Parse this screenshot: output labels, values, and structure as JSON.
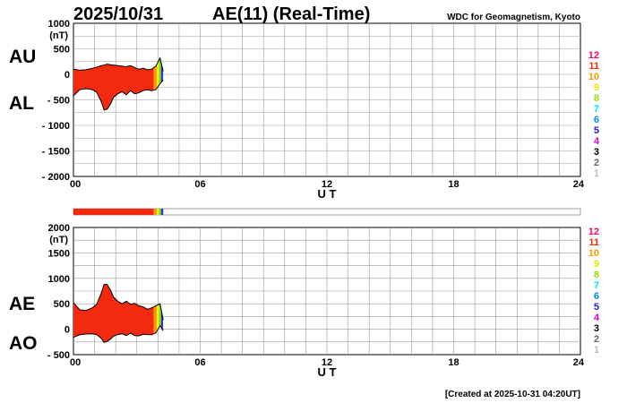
{
  "date": "2025/10/31",
  "title": "AE(11) (Real-Time)",
  "organization": "WDC for Geomagnetism, Kyoto",
  "created": "[Created at 2025-10-31 04:20UT]",
  "colors": {
    "fill_main": "#f42a10",
    "fill_orange": "#ff9900",
    "fill_yellow": "#f4f400",
    "fill_green": "#66dd33",
    "fill_blue": "#3333cc",
    "grid": "#999999",
    "curve": "#000000"
  },
  "kp_legend": [
    {
      "label": "12",
      "color": "#ff0066"
    },
    {
      "label": "11",
      "color": "#ff2a00"
    },
    {
      "label": "10",
      "color": "#ff9900"
    },
    {
      "label": "9",
      "color": "#e6e600"
    },
    {
      "label": "8",
      "color": "#99dd00"
    },
    {
      "label": "7",
      "color": "#00e6e6"
    },
    {
      "label": "6",
      "color": "#0088ff"
    },
    {
      "label": "5",
      "color": "#2222cc"
    },
    {
      "label": "4",
      "color": "#cc00cc"
    },
    {
      "label": "3",
      "color": "#000000"
    },
    {
      "label": "2",
      "color": "#666666"
    },
    {
      "label": "1",
      "color": "#bbbbbb"
    }
  ],
  "chart_data": [
    {
      "type": "area",
      "panel": "AU/AL",
      "labels_left": [
        "AU",
        "AL"
      ],
      "ylabel_unit": "(nT)",
      "ylim": [
        -2000,
        1000
      ],
      "yticks": [
        1000,
        500,
        0,
        -500,
        -1000,
        -1500,
        -2000
      ],
      "ytick_labels": [
        "1000",
        "500",
        "0",
        "- 500",
        "- 1000",
        "- 1500",
        "- 2000"
      ],
      "xlim": [
        0,
        24
      ],
      "xticks": [
        0,
        6,
        12,
        18,
        24
      ],
      "xtick_labels": [
        "00",
        "06",
        "12",
        "18",
        "24"
      ],
      "xlabel": "U T",
      "grid": true,
      "x": [
        0,
        0.3,
        0.6,
        0.9,
        1.1,
        1.3,
        1.45,
        1.6,
        1.75,
        1.9,
        2.1,
        2.3,
        2.5,
        2.7,
        2.9,
        3.1,
        3.3,
        3.5,
        3.7,
        3.9,
        4.1,
        4.25
      ],
      "series": [
        {
          "name": "AU",
          "values": [
            100,
            80,
            90,
            120,
            140,
            170,
            180,
            200,
            190,
            180,
            170,
            160,
            150,
            170,
            130,
            100,
            120,
            90,
            100,
            160,
            320,
            60
          ]
        },
        {
          "name": "AL",
          "values": [
            -420,
            -300,
            -280,
            -300,
            -350,
            -520,
            -700,
            -680,
            -580,
            -450,
            -380,
            -340,
            -400,
            -320,
            -380,
            -360,
            -320,
            -300,
            -320,
            -300,
            -180,
            -120
          ]
        }
      ]
    },
    {
      "type": "bar",
      "panel": "activity-bar",
      "xlim": [
        0,
        24
      ],
      "segments": [
        {
          "x0": 0,
          "x1": 3.8,
          "color": "#f42a10"
        },
        {
          "x0": 3.8,
          "x1": 3.95,
          "color": "#ff9900"
        },
        {
          "x0": 3.95,
          "x1": 4.05,
          "color": "#f4f400"
        },
        {
          "x0": 4.05,
          "x1": 4.15,
          "color": "#66dd33"
        },
        {
          "x0": 4.15,
          "x1": 4.25,
          "color": "#3333cc"
        }
      ]
    },
    {
      "type": "area",
      "panel": "AE/AO",
      "labels_left": [
        "AE",
        "AO"
      ],
      "ylabel_unit": "(nT)",
      "ylim": [
        -500,
        2000
      ],
      "yticks": [
        2000,
        1500,
        1000,
        500,
        0,
        -500
      ],
      "ytick_labels": [
        "2000",
        "1500",
        "1000",
        "500",
        "0",
        "- 500"
      ],
      "xlim": [
        0,
        24
      ],
      "xticks": [
        0,
        6,
        12,
        18,
        24
      ],
      "xtick_labels": [
        "00",
        "06",
        "12",
        "18",
        "24"
      ],
      "xlabel": "U T",
      "grid": true,
      "x": [
        0,
        0.3,
        0.6,
        0.9,
        1.1,
        1.3,
        1.45,
        1.6,
        1.75,
        1.9,
        2.1,
        2.3,
        2.5,
        2.7,
        2.9,
        3.1,
        3.3,
        3.5,
        3.7,
        3.9,
        4.1,
        4.25
      ],
      "series": [
        {
          "name": "AE",
          "values": [
            520,
            380,
            370,
            420,
            490,
            690,
            880,
            880,
            770,
            630,
            550,
            500,
            550,
            490,
            510,
            460,
            440,
            390,
            420,
            460,
            500,
            180
          ]
        },
        {
          "name": "AO",
          "values": [
            -160,
            -110,
            -95,
            -90,
            -105,
            -175,
            -260,
            -240,
            -195,
            -135,
            -105,
            -90,
            -125,
            -75,
            -125,
            -130,
            -100,
            -105,
            -110,
            -70,
            70,
            -30
          ]
        }
      ]
    }
  ]
}
